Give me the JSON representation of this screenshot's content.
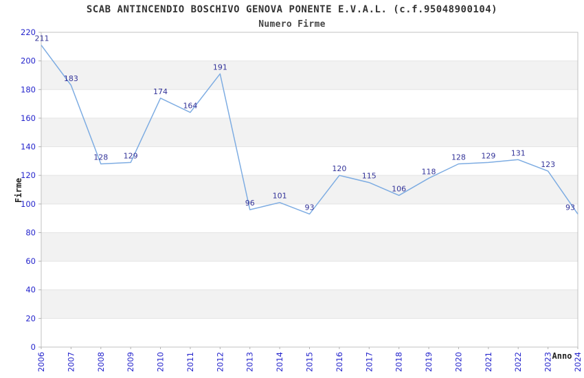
{
  "chart_data": {
    "type": "line",
    "title": "SCAB ANTINCENDIO BOSCHIVO GENOVA PONENTE E.V.A.L. (c.f.95048900104)",
    "subtitle": "Numero Firme",
    "xlabel": "Anno",
    "ylabel": "Firme",
    "x": [
      2006,
      2007,
      2008,
      2009,
      2010,
      2011,
      2012,
      2013,
      2014,
      2015,
      2016,
      2017,
      2018,
      2019,
      2020,
      2021,
      2022,
      2023,
      2024
    ],
    "values": [
      211,
      183,
      128,
      129,
      174,
      164,
      191,
      96,
      101,
      93,
      120,
      115,
      106,
      118,
      128,
      129,
      131,
      123,
      93
    ],
    "ylim": [
      0,
      220
    ],
    "ytick_step": 20,
    "grid": "alternating-horizontal-bands",
    "legend": "none",
    "colors": {
      "line": "#7dace2",
      "tick_labels": "#2424cc",
      "data_labels": "#333399",
      "band": "#f2f2f2",
      "gridline": "#e4e4e4",
      "frame": "#c0c0c0",
      "tick_mark": "#b0b0b0",
      "axis_title": "#222222",
      "title": "#333333"
    }
  }
}
